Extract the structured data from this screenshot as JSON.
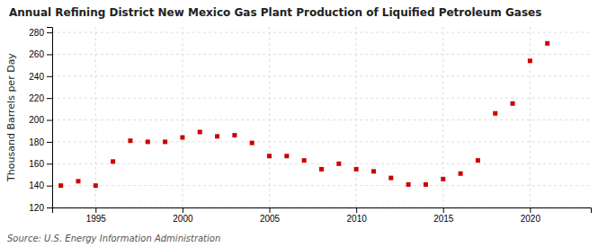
{
  "chart_data": {
    "type": "scatter",
    "title": "Annual Refining District New Mexico Gas Plant Production of Liquified Petroleum Gases",
    "ylabel": "Thousand Barrels per Day",
    "source": "Source: U.S. Energy Information Administration",
    "x": [
      1993,
      1994,
      1995,
      1996,
      1997,
      1998,
      1999,
      2000,
      2001,
      2002,
      2003,
      2004,
      2005,
      2006,
      2007,
      2008,
      2009,
      2010,
      2011,
      2012,
      2013,
      2014,
      2015,
      2016,
      2017,
      2018,
      2019,
      2020,
      2021
    ],
    "values": [
      140,
      144,
      140,
      162,
      181,
      180,
      180,
      184,
      189,
      185,
      186,
      179,
      167,
      167,
      163,
      155,
      160,
      155,
      153,
      147,
      141,
      141,
      146,
      151,
      163,
      206,
      215,
      254,
      270
    ],
    "color": "#cc0000",
    "marker": "square",
    "xlim": [
      1992.5,
      2023.5
    ],
    "ylim": [
      120,
      285
    ],
    "xticks": [
      1995,
      2000,
      2005,
      2010,
      2015,
      2020
    ],
    "yticks": [
      120,
      140,
      160,
      180,
      200,
      220,
      240,
      260,
      280
    ],
    "grid": true
  }
}
